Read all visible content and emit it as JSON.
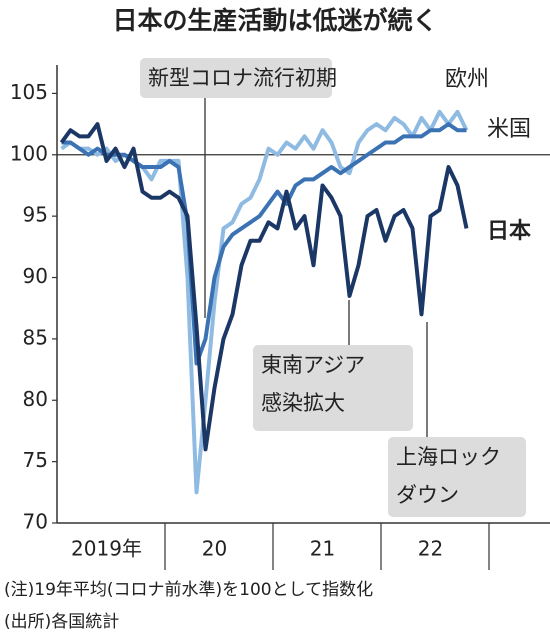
{
  "chart_data": {
    "type": "line",
    "title": "日本の生産活動は低迷が続く",
    "categories": [
      null,
      null,
      null,
      null,
      null,
      "2019年",
      null,
      null,
      null,
      null,
      null,
      null,
      null,
      null,
      null,
      null,
      null,
      "20",
      null,
      null,
      null,
      null,
      null,
      null,
      null,
      null,
      null,
      null,
      null,
      "21",
      null,
      null,
      null,
      null,
      null,
      null,
      null,
      null,
      null,
      null,
      null,
      "22",
      null,
      null,
      null,
      null
    ],
    "series": [
      {
        "name": "欧州",
        "color": "#8fbbe3",
        "values": [
          100.5,
          101,
          100.5,
          100.5,
          100,
          100.5,
          99.5,
          100,
          99.5,
          99,
          98,
          99.5,
          99.5,
          99.5,
          90,
          72.5,
          80,
          88,
          94,
          94.5,
          96,
          96.5,
          98,
          100.5,
          100,
          101,
          100.5,
          101.5,
          100.5,
          102,
          101,
          99,
          98.5,
          101,
          102,
          102.5,
          102,
          103,
          102.5,
          101.5,
          103,
          102,
          103.5,
          102.5,
          103.5,
          102
        ]
      },
      {
        "name": "米国",
        "color": "#3b72b3",
        "values": [
          101,
          101,
          100.5,
          100,
          100.5,
          100,
          100,
          100,
          99.5,
          99,
          99,
          99,
          99.5,
          99,
          94.5,
          83,
          85,
          90,
          92.5,
          93.5,
          94,
          94.5,
          95,
          96,
          97,
          96,
          97.5,
          98,
          98,
          98.5,
          99,
          98.5,
          99,
          99.5,
          100,
          100.5,
          101,
          101,
          101.5,
          101.5,
          101.5,
          102,
          102,
          102.5,
          102,
          102
        ]
      },
      {
        "name": "日本",
        "color": "#1b3766",
        "values": [
          101,
          102,
          101.5,
          101.5,
          102.5,
          99.5,
          100.5,
          99,
          100.5,
          97,
          96.5,
          96.5,
          97,
          96.5,
          95,
          86,
          76,
          81,
          85,
          87,
          91,
          93,
          93,
          94.5,
          94,
          97,
          94,
          95,
          91,
          97.5,
          96.5,
          95,
          88.5,
          91,
          95,
          95.5,
          93,
          95,
          95.5,
          94,
          87,
          95,
          95.5,
          99,
          97.5,
          94
        ]
      }
    ],
    "ylim": [
      70,
      106.5
    ],
    "yticks": [
      70,
      75,
      80,
      85,
      90,
      95,
      100,
      105
    ],
    "reference_line": 100,
    "annotations": [
      {
        "lines": [
          "新型コロナ流行初期"
        ]
      },
      {
        "lines": [
          "東南アジア",
          "感染拡大"
        ]
      },
      {
        "lines": [
          "上海ロック",
          "ダウン"
        ]
      }
    ],
    "notes": [
      "(注)19年平均(コロナ前水準)を100として指数化",
      "(出所)各国統計"
    ]
  }
}
